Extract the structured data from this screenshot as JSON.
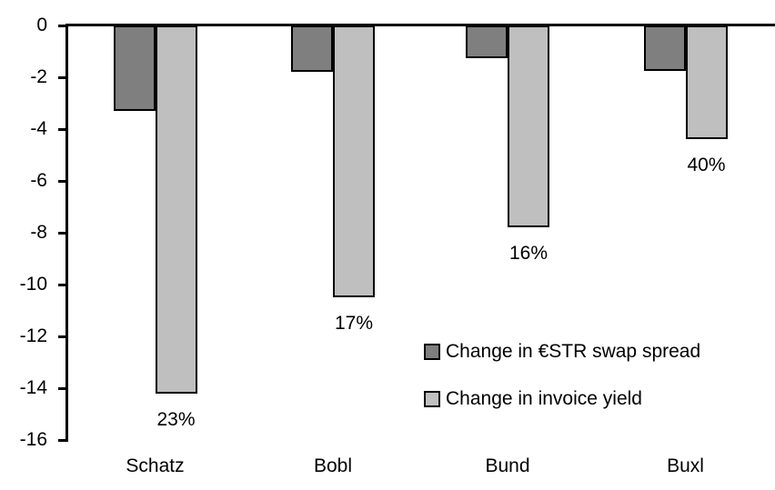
{
  "chart_data": {
    "type": "bar",
    "title": "",
    "xlabel": "",
    "ylabel": "",
    "categories": [
      "Schatz",
      "Bobl",
      "Bund",
      "Buxl"
    ],
    "series": [
      {
        "id": "swap-spread",
        "name": "Change in €STR swap spread",
        "color": "#7F7F7F",
        "values": [
          -3.3,
          -1.8,
          -1.25,
          -1.75
        ]
      },
      {
        "id": "invoice-yield",
        "name": "Change in invoice yield",
        "color": "#BFBFBF",
        "values": [
          -14.2,
          -10.5,
          -7.8,
          -4.4
        ],
        "point_labels": [
          "23%",
          "17%",
          "16%",
          "40%"
        ]
      }
    ],
    "ylim": [
      -16,
      0
    ],
    "yticks": [
      0,
      -2,
      -4,
      -6,
      -8,
      -10,
      -12,
      -14,
      -16
    ],
    "grid": false,
    "axis_color": "#000000",
    "background_color": "#FFFFFF",
    "legend_position": "inside-right"
  }
}
